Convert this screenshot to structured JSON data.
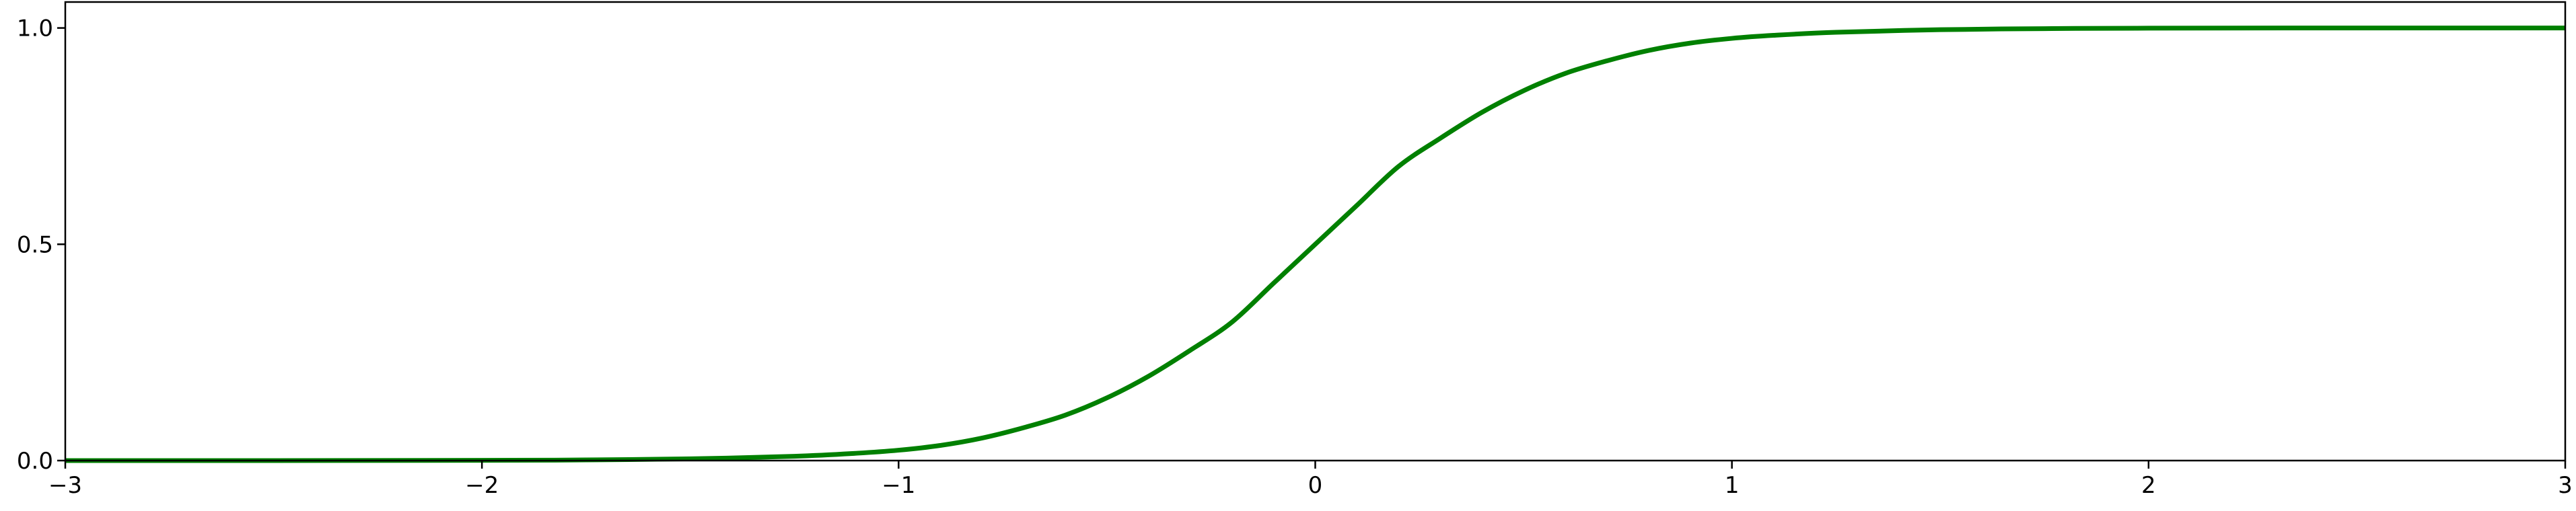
{
  "chart_data": {
    "type": "line",
    "title": "",
    "xlabel": "",
    "ylabel": "",
    "xlim": [
      -3,
      3
    ],
    "ylim": [
      0,
      1.06
    ],
    "grid": false,
    "x_ticks": [
      -3,
      -2,
      -1,
      0,
      1,
      2,
      3
    ],
    "x_tick_labels": [
      "−3",
      "−2",
      "−1",
      "0",
      "1",
      "2",
      "3"
    ],
    "y_ticks": [
      0.0,
      0.5,
      1.0
    ],
    "y_tick_labels": [
      "0.0",
      "0.5",
      "1.0"
    ],
    "series": [
      {
        "color": "#008000",
        "x": [
          -3.0,
          -2.5,
          -2.0,
          -1.75,
          -1.5,
          -1.25,
          -1.1,
          -1.0,
          -0.9,
          -0.8,
          -0.7,
          -0.6,
          -0.5,
          -0.4,
          -0.3,
          -0.2,
          -0.1,
          0.0,
          0.1,
          0.2,
          0.3,
          0.4,
          0.5,
          0.6,
          0.7,
          0.8,
          0.9,
          1.0,
          1.1,
          1.25,
          1.5,
          1.75,
          2.0,
          2.5,
          3.0
        ],
        "y": [
          0.0,
          0.0,
          0.0005,
          0.0015,
          0.004,
          0.01,
          0.017,
          0.024,
          0.035,
          0.052,
          0.076,
          0.105,
          0.145,
          0.195,
          0.255,
          0.32,
          0.41,
          0.5,
          0.59,
          0.68,
          0.745,
          0.805,
          0.855,
          0.895,
          0.924,
          0.948,
          0.965,
          0.976,
          0.983,
          0.99,
          0.996,
          0.9985,
          0.9995,
          1.0,
          1.0
        ]
      }
    ]
  }
}
